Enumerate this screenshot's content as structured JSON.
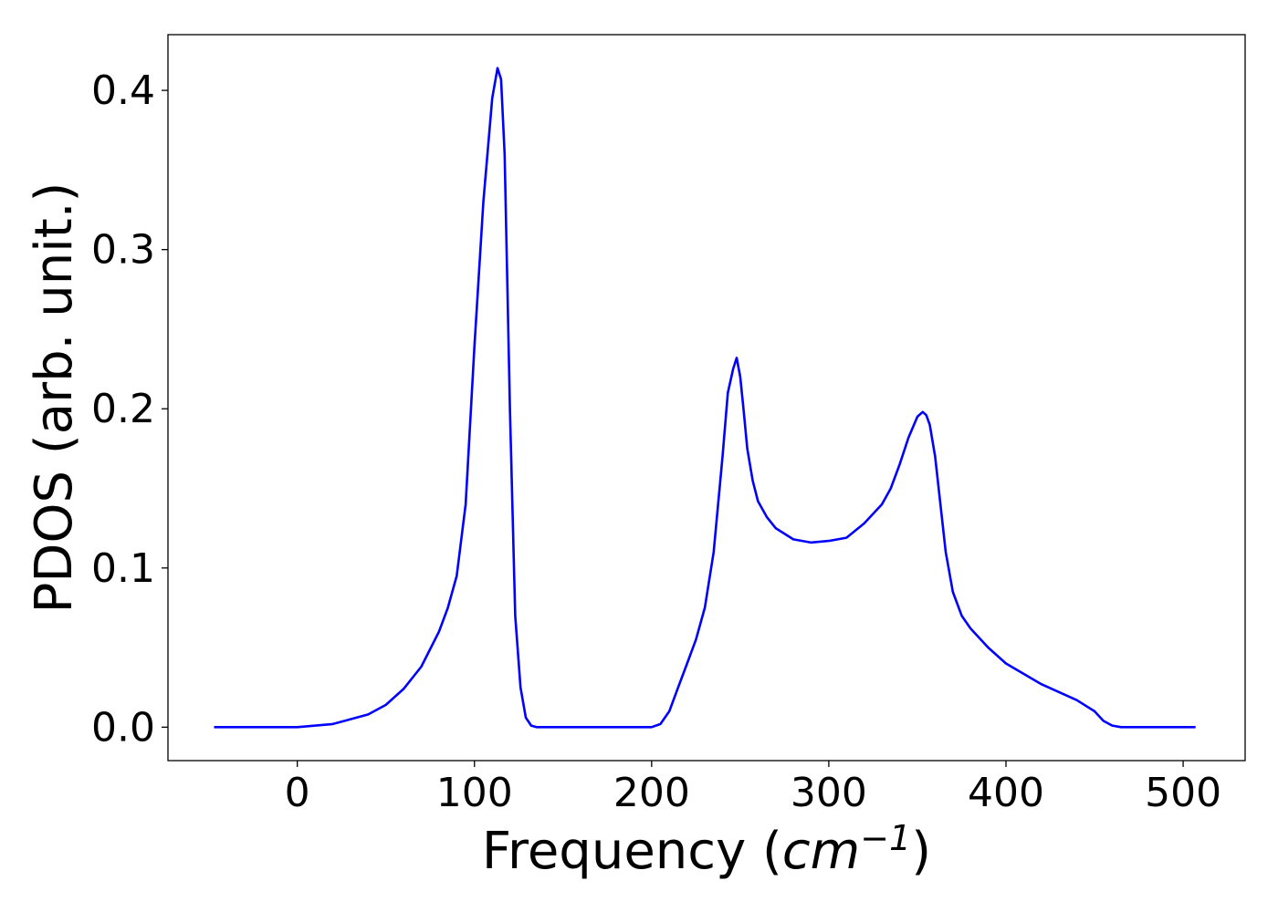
{
  "chart_data": {
    "type": "line",
    "title": "",
    "xlabel": "Frequency (cm^-1)",
    "xlabel_parts": {
      "prefix": "Frequency (",
      "unit": "cm",
      "exponent": "−1",
      "suffix": ")"
    },
    "ylabel": "PDOS (arb. unit.)",
    "xlim": [
      -73,
      535
    ],
    "ylim": [
      -0.021,
      0.435
    ],
    "xticks": [
      0,
      100,
      200,
      300,
      400,
      500
    ],
    "xtick_labels": [
      "0",
      "100",
      "200",
      "300",
      "400",
      "500"
    ],
    "yticks": [
      0.0,
      0.1,
      0.2,
      0.3,
      0.4
    ],
    "ytick_labels": [
      "0.0",
      "0.1",
      "0.2",
      "0.3",
      "0.4"
    ],
    "grid": false,
    "legend": "none",
    "color": "#0000ff",
    "series": [
      {
        "x": [
          -47,
          0,
          20,
          40,
          50,
          60,
          70,
          80,
          85,
          90,
          95,
          100,
          105,
          110,
          113,
          115,
          117,
          120,
          123,
          126,
          129,
          132,
          135,
          138,
          140,
          150,
          200,
          205,
          210,
          215,
          220,
          225,
          230,
          235,
          240,
          243,
          246,
          248,
          250,
          252,
          254,
          257,
          260,
          265,
          270,
          280,
          290,
          300,
          310,
          320,
          330,
          335,
          340,
          345,
          350,
          353,
          355,
          357,
          360,
          363,
          366,
          370,
          375,
          380,
          390,
          400,
          420,
          440,
          450,
          455,
          460,
          465,
          470,
          507
        ],
        "y": [
          0,
          0,
          0.002,
          0.008,
          0.014,
          0.024,
          0.038,
          0.06,
          0.075,
          0.095,
          0.14,
          0.24,
          0.33,
          0.395,
          0.414,
          0.407,
          0.36,
          0.2,
          0.07,
          0.025,
          0.006,
          0.001,
          0,
          0,
          0,
          0,
          0,
          0.002,
          0.01,
          0.025,
          0.04,
          0.055,
          0.075,
          0.11,
          0.17,
          0.21,
          0.225,
          0.232,
          0.22,
          0.198,
          0.175,
          0.155,
          0.142,
          0.132,
          0.125,
          0.118,
          0.116,
          0.117,
          0.119,
          0.128,
          0.14,
          0.15,
          0.165,
          0.182,
          0.195,
          0.198,
          0.196,
          0.19,
          0.17,
          0.14,
          0.11,
          0.085,
          0.07,
          0.062,
          0.05,
          0.04,
          0.027,
          0.017,
          0.01,
          0.004,
          0.001,
          0,
          0,
          0
        ]
      }
    ]
  }
}
